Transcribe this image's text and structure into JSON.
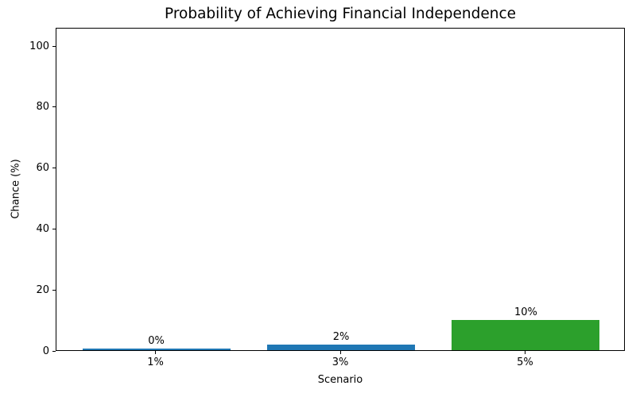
{
  "chart_data": {
    "type": "bar",
    "title": "Probability of Achieving Financial Independence",
    "xlabel": "Scenario",
    "ylabel": "Chance (%)",
    "categories": [
      "1%",
      "3%",
      "5%"
    ],
    "values": [
      0.4,
      1.8,
      10
    ],
    "value_labels": [
      "0%",
      "2%",
      "10%"
    ],
    "bar_colors": [
      "#1f77b4",
      "#1f77b4",
      "#2ca02c"
    ],
    "yticks": [
      0,
      20,
      40,
      60,
      80,
      100
    ],
    "ytick_labels": [
      "0",
      "20",
      "40",
      "60",
      "80",
      "100"
    ],
    "ylim": [
      0,
      106
    ],
    "grid": false,
    "background_color": "#ffffff",
    "text_color": "#000000",
    "spine_color": "#000000"
  }
}
